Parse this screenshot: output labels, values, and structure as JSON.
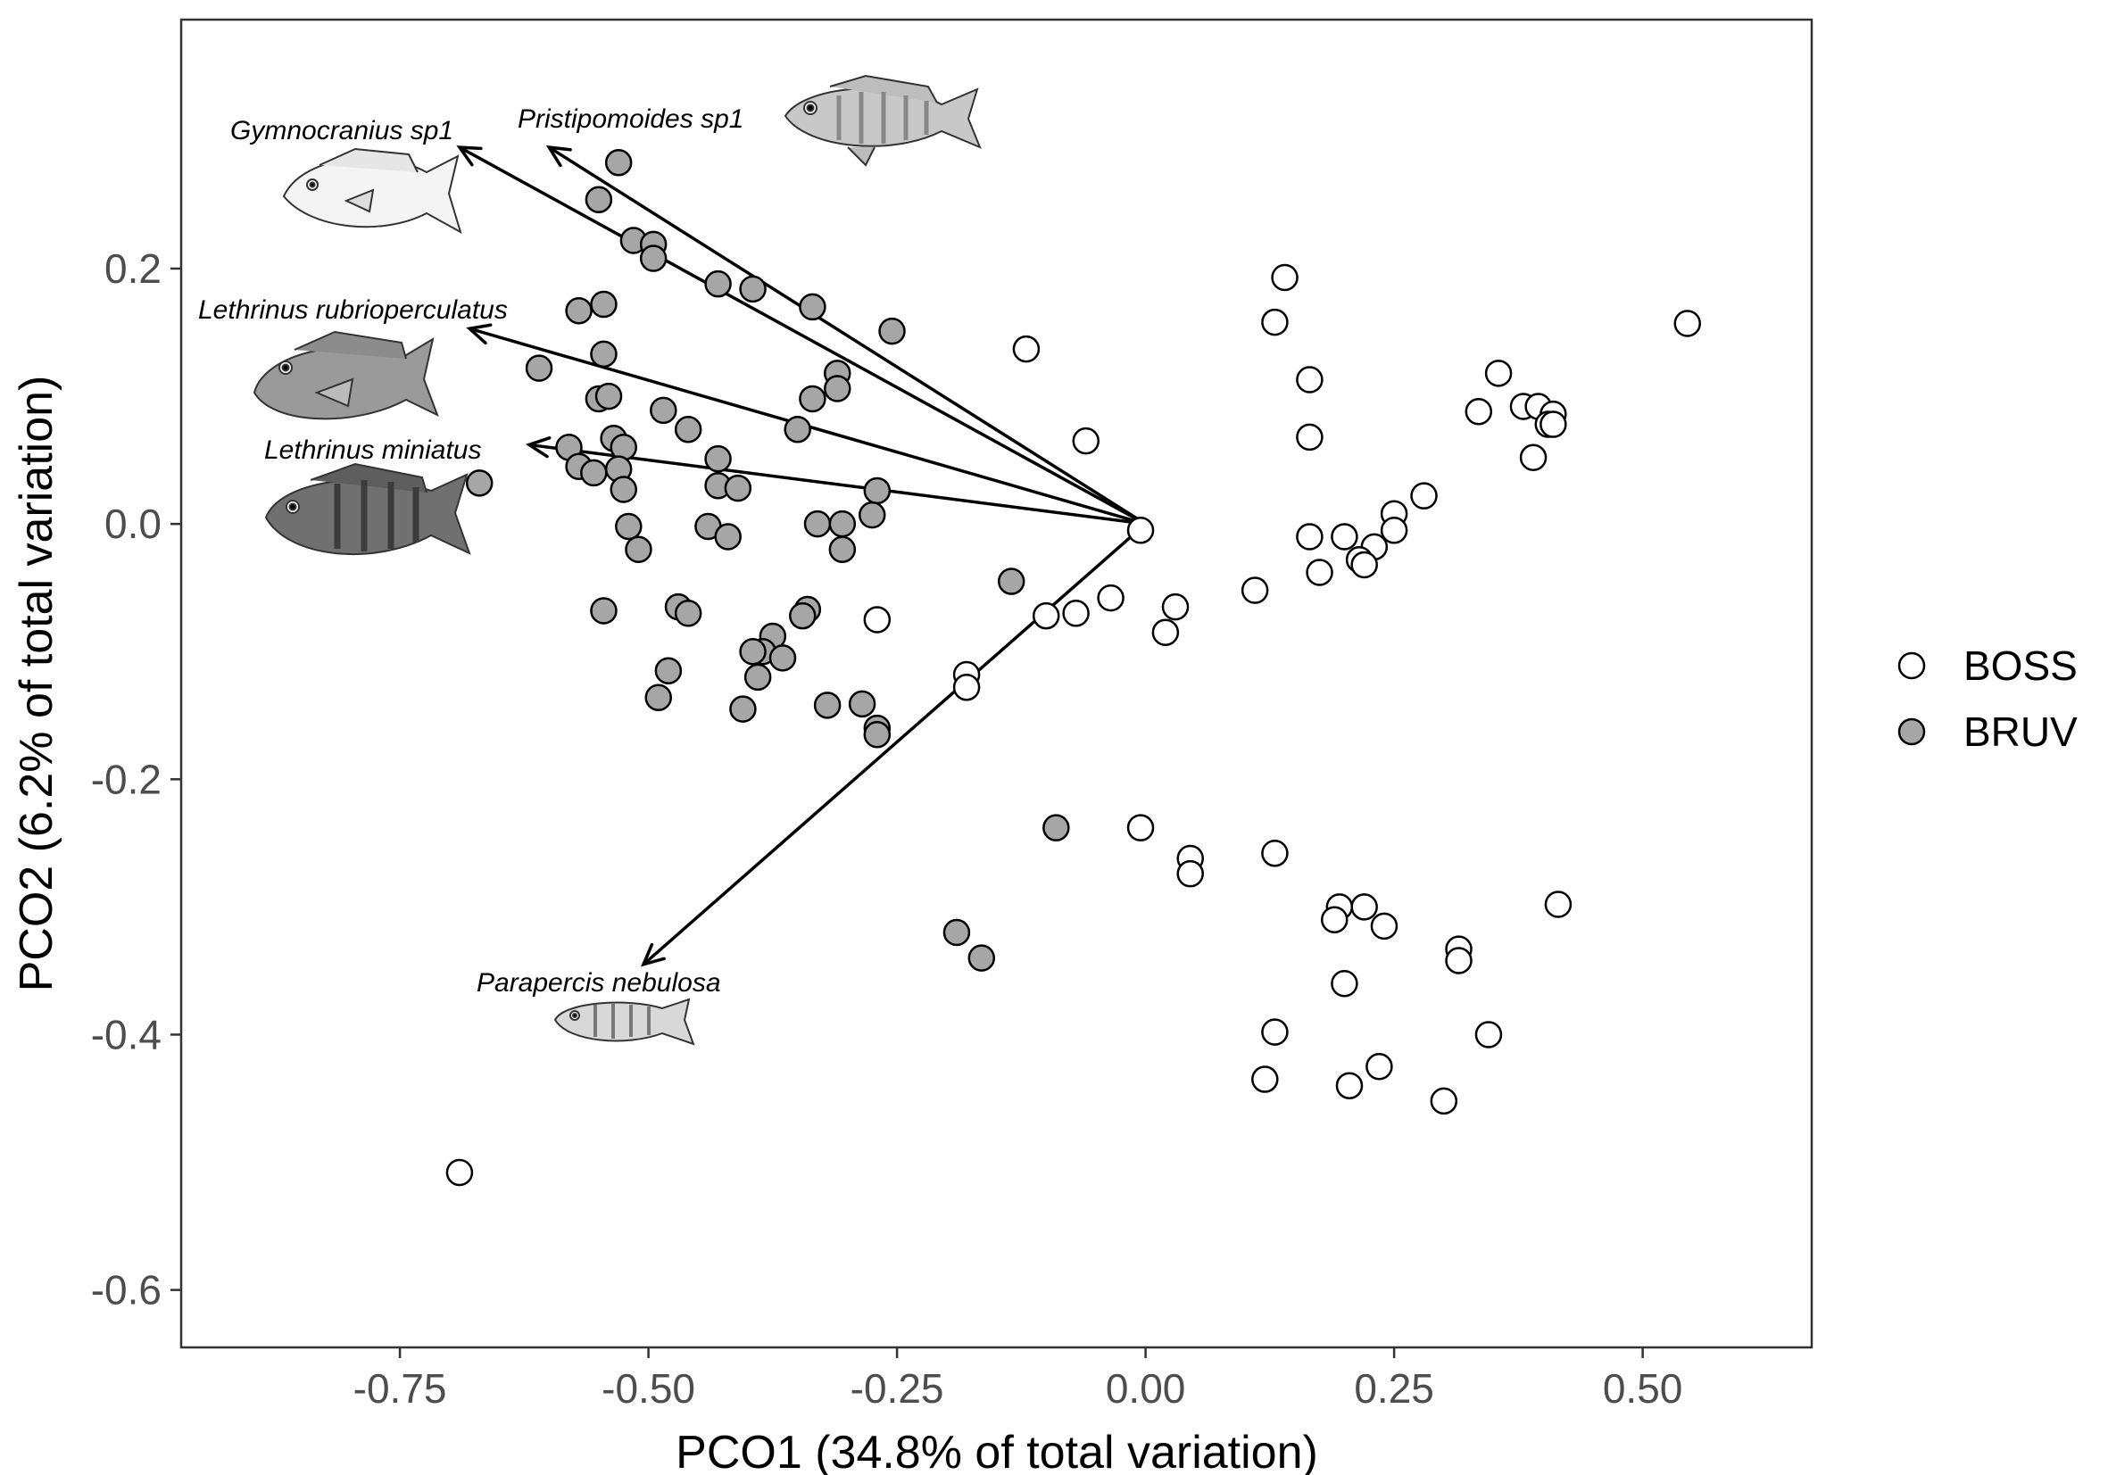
{
  "chart_data": {
    "type": "scatter",
    "title": "",
    "xlabel": "PCO1 (34.8% of total variation)",
    "ylabel": "PCO2 (6.2% of total variation)",
    "xlim": [
      -0.97,
      0.67
    ],
    "ylim": [
      -0.645,
      0.395
    ],
    "xticks": [
      -0.75,
      -0.5,
      -0.25,
      0.0,
      0.25,
      0.5
    ],
    "xtick_labels": [
      "-0.75",
      "-0.50",
      "-0.25",
      "0.00",
      "0.25",
      "0.50"
    ],
    "yticks": [
      -0.6,
      -0.4,
      -0.2,
      0.0,
      0.2
    ],
    "ytick_labels": [
      "-0.6",
      "-0.4",
      "-0.2",
      "0.0",
      "0.2"
    ],
    "grid": false,
    "legend": {
      "position": "right",
      "entries": [
        "BOSS",
        "BRUV"
      ]
    },
    "colors": {
      "BOSS": "#ffffff",
      "BRUV": "#a6a6a6",
      "stroke": "#000000"
    },
    "series": [
      {
        "name": "BOSS",
        "points": [
          [
            0.14,
            0.193
          ],
          [
            0.13,
            0.158
          ],
          [
            0.165,
            0.113
          ],
          [
            0.165,
            0.068
          ],
          [
            0.355,
            0.118
          ],
          [
            0.335,
            0.088
          ],
          [
            0.38,
            0.092
          ],
          [
            0.395,
            0.092
          ],
          [
            0.41,
            0.086
          ],
          [
            0.405,
            0.078
          ],
          [
            0.41,
            0.078
          ],
          [
            0.39,
            0.052
          ],
          [
            0.545,
            0.157
          ],
          [
            0.28,
            0.022
          ],
          [
            0.25,
            0.008
          ],
          [
            0.25,
            -0.005
          ],
          [
            0.2,
            -0.01
          ],
          [
            0.165,
            -0.01
          ],
          [
            0.23,
            -0.018
          ],
          [
            0.215,
            -0.028
          ],
          [
            0.22,
            -0.032
          ],
          [
            0.175,
            -0.038
          ],
          [
            0.11,
            -0.052
          ],
          [
            0.03,
            -0.065
          ],
          [
            0.02,
            -0.085
          ],
          [
            -0.035,
            -0.058
          ],
          [
            -0.07,
            -0.07
          ],
          [
            -0.1,
            -0.072
          ],
          [
            -0.18,
            -0.118
          ],
          [
            -0.18,
            -0.128
          ],
          [
            -0.27,
            -0.075
          ],
          [
            -0.12,
            0.137
          ],
          [
            -0.06,
            0.065
          ],
          [
            -0.005,
            -0.005
          ],
          [
            -0.005,
            -0.238
          ],
          [
            0.045,
            -0.262
          ],
          [
            0.045,
            -0.274
          ],
          [
            0.13,
            -0.258
          ],
          [
            0.195,
            -0.3
          ],
          [
            0.22,
            -0.3
          ],
          [
            0.19,
            -0.31
          ],
          [
            0.24,
            -0.315
          ],
          [
            0.315,
            -0.333
          ],
          [
            0.315,
            -0.342
          ],
          [
            0.415,
            -0.298
          ],
          [
            0.2,
            -0.36
          ],
          [
            0.13,
            -0.398
          ],
          [
            0.345,
            -0.4
          ],
          [
            0.12,
            -0.435
          ],
          [
            0.205,
            -0.44
          ],
          [
            0.235,
            -0.425
          ],
          [
            0.3,
            -0.452
          ],
          [
            -0.69,
            -0.508
          ]
        ]
      },
      {
        "name": "BRUV",
        "points": [
          [
            -0.53,
            0.283
          ],
          [
            -0.55,
            0.254
          ],
          [
            -0.515,
            0.222
          ],
          [
            -0.495,
            0.219
          ],
          [
            -0.495,
            0.208
          ],
          [
            -0.43,
            0.188
          ],
          [
            -0.395,
            0.184
          ],
          [
            -0.335,
            0.17
          ],
          [
            -0.255,
            0.151
          ],
          [
            -0.545,
            0.172
          ],
          [
            -0.57,
            0.167
          ],
          [
            -0.545,
            0.133
          ],
          [
            -0.61,
            0.122
          ],
          [
            -0.31,
            0.118
          ],
          [
            -0.31,
            0.106
          ],
          [
            -0.335,
            0.098
          ],
          [
            -0.55,
            0.098
          ],
          [
            -0.54,
            0.1
          ],
          [
            -0.485,
            0.089
          ],
          [
            -0.46,
            0.074
          ],
          [
            -0.35,
            0.074
          ],
          [
            -0.535,
            0.067
          ],
          [
            -0.58,
            0.06
          ],
          [
            -0.525,
            0.06
          ],
          [
            -0.43,
            0.051
          ],
          [
            -0.57,
            0.045
          ],
          [
            -0.555,
            0.04
          ],
          [
            -0.53,
            0.043
          ],
          [
            -0.43,
            0.03
          ],
          [
            -0.41,
            0.028
          ],
          [
            -0.525,
            0.027
          ],
          [
            -0.27,
            0.026
          ],
          [
            -0.67,
            0.032
          ],
          [
            -0.275,
            0.007
          ],
          [
            -0.33,
            0.0
          ],
          [
            -0.305,
            0.0
          ],
          [
            -0.44,
            -0.002
          ],
          [
            -0.52,
            -0.002
          ],
          [
            -0.42,
            -0.01
          ],
          [
            -0.305,
            -0.02
          ],
          [
            -0.51,
            -0.02
          ],
          [
            -0.135,
            -0.045
          ],
          [
            -0.47,
            -0.065
          ],
          [
            -0.46,
            -0.07
          ],
          [
            -0.545,
            -0.068
          ],
          [
            -0.34,
            -0.067
          ],
          [
            -0.345,
            -0.072
          ],
          [
            -0.375,
            -0.088
          ],
          [
            -0.385,
            -0.1
          ],
          [
            -0.365,
            -0.105
          ],
          [
            -0.395,
            -0.1
          ],
          [
            -0.48,
            -0.115
          ],
          [
            -0.39,
            -0.12
          ],
          [
            -0.49,
            -0.136
          ],
          [
            -0.405,
            -0.145
          ],
          [
            -0.32,
            -0.142
          ],
          [
            -0.285,
            -0.141
          ],
          [
            -0.27,
            -0.16
          ],
          [
            -0.27,
            -0.165
          ],
          [
            -0.09,
            -0.238
          ],
          [
            -0.19,
            -0.32
          ],
          [
            -0.165,
            -0.34
          ]
        ]
      }
    ],
    "arrows": [
      {
        "label": "Gymnocranius sp1",
        "to": [
          -0.69,
          0.295
        ]
      },
      {
        "label": "Pristipomoides sp1",
        "to": [
          -0.6,
          0.295
        ]
      },
      {
        "label": "Lethrinus rubrioperculatus",
        "to": [
          -0.68,
          0.153
        ]
      },
      {
        "label": "Lethrinus miniatus",
        "to": [
          -0.62,
          0.062
        ]
      },
      {
        "label": "Parapercis nebulosa",
        "to": [
          -0.505,
          -0.345
        ]
      }
    ],
    "arrow_origin": [
      0.0,
      0.0
    ]
  }
}
